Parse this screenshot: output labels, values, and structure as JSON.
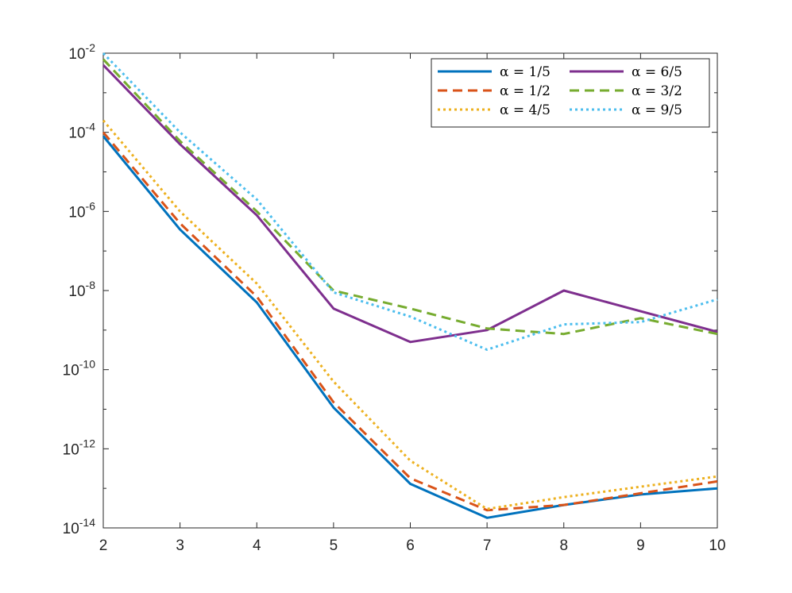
{
  "chart_data": {
    "type": "line",
    "title": "",
    "xlabel": "",
    "ylabel": "",
    "xlim": [
      2,
      10
    ],
    "ylim": [
      1e-14,
      0.01
    ],
    "yscale": "log",
    "grid": false,
    "legend_placement": "top-right",
    "legend_columns": 2,
    "x": [
      2,
      3,
      4,
      5,
      6,
      7,
      8,
      9,
      10
    ],
    "x_ticks": [
      "2",
      "3",
      "4",
      "5",
      "6",
      "7",
      "8",
      "9",
      "10"
    ],
    "y_ticks": [
      {
        "value": 1e-14,
        "base": "10",
        "exp": "-14"
      },
      {
        "value": 1e-12,
        "base": "10",
        "exp": "-12"
      },
      {
        "value": 1e-10,
        "base": "10",
        "exp": "-10"
      },
      {
        "value": 1e-08,
        "base": "10",
        "exp": "-8"
      },
      {
        "value": 1e-06,
        "base": "10",
        "exp": "-6"
      },
      {
        "value": 0.0001,
        "base": "10",
        "exp": "-4"
      },
      {
        "value": 0.01,
        "base": "10",
        "exp": "-2"
      }
    ],
    "series": [
      {
        "name": "α = 1/5",
        "color": "#0072BD",
        "dash": "solid",
        "values": [
          8e-05,
          3.5e-07,
          5e-09,
          1.1e-11,
          1.3e-13,
          1.8e-14,
          3.8e-14,
          7e-14,
          1e-13
        ]
      },
      {
        "name": "α = 1/2",
        "color": "#D95319",
        "dash": "dashed",
        "values": [
          0.0001,
          5e-07,
          7e-09,
          1.5e-11,
          1.8e-13,
          2.8e-14,
          3.8e-14,
          7.5e-14,
          1.5e-13
        ]
      },
      {
        "name": "α = 4/5",
        "color": "#EDB120",
        "dash": "dotted",
        "values": [
          0.0002,
          1e-06,
          1.5e-08,
          5e-11,
          5e-13,
          3e-14,
          6e-14,
          1.1e-13,
          2e-13
        ]
      },
      {
        "name": "α = 6/5",
        "color": "#7E2F8E",
        "dash": "solid",
        "values": [
          0.005,
          5e-05,
          8e-07,
          3.5e-09,
          5e-10,
          1e-09,
          1e-08,
          3e-09,
          9e-10
        ]
      },
      {
        "name": "α = 3/2",
        "color": "#77AC30",
        "dash": "dashed",
        "values": [
          0.007,
          6e-05,
          1e-06,
          1e-08,
          3.5e-09,
          1.1e-09,
          8e-10,
          2e-09,
          8e-10
        ]
      },
      {
        "name": "α = 9/5",
        "color": "#4DBEEE",
        "dash": "dotted",
        "values": [
          0.01,
          0.0001,
          2e-06,
          9e-09,
          2.2e-09,
          3.2e-10,
          1.4e-09,
          1.6e-09,
          6e-09
        ]
      }
    ]
  }
}
